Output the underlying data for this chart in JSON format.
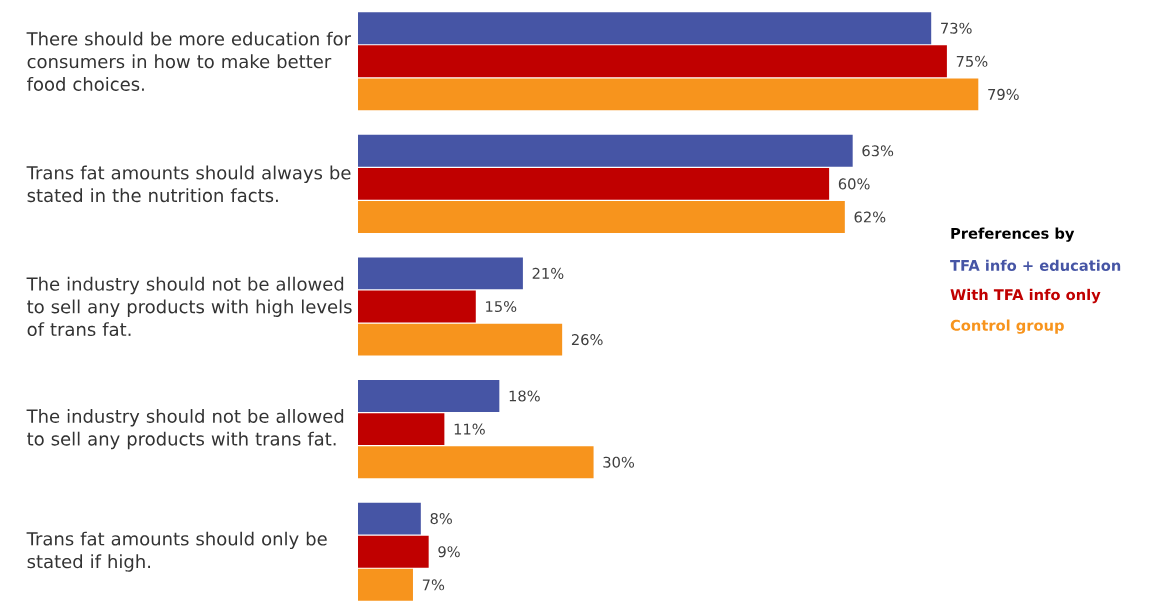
{
  "chart_data": {
    "type": "bar",
    "orientation": "horizontal",
    "legend_title": "Preferences by",
    "legend": "right",
    "categories": [
      "There should be more education for consumers in how to make better food choices.",
      "Trans fat amounts should always be stated in the nutrition facts.",
      "The industry should not be allowed to sell any products with high levels of trans fat.",
      "The industry should not be allowed to sell any products with trans fat.",
      "Trans fat amounts should only be stated if high."
    ],
    "series": [
      {
        "name": "TFA info + education",
        "color": "#4655a5",
        "values": [
          73,
          63,
          21,
          18,
          8
        ],
        "value_labels": [
          "73%",
          "63%",
          "21%",
          "18%",
          "8%"
        ]
      },
      {
        "name": "With TFA info only",
        "color": "#c00000",
        "values": [
          75,
          60,
          15,
          11,
          9
        ],
        "value_labels": [
          "75%",
          "60%",
          "15%",
          "11%",
          "9%"
        ]
      },
      {
        "name": "Control group",
        "color": "#f7941d",
        "values": [
          79,
          62,
          26,
          30,
          7
        ],
        "value_labels": [
          "79%",
          "62%",
          "26%",
          "30%",
          "7%"
        ]
      }
    ]
  }
}
